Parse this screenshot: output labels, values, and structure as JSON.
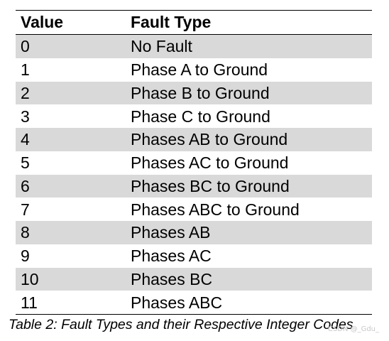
{
  "table": {
    "headers": {
      "value": "Value",
      "fault_type": "Fault Type"
    },
    "rows": [
      {
        "value": "0",
        "fault_type": "No Fault"
      },
      {
        "value": "1",
        "fault_type": "Phase A to Ground"
      },
      {
        "value": "2",
        "fault_type": "Phase B to Ground"
      },
      {
        "value": "3",
        "fault_type": "Phase C to Ground"
      },
      {
        "value": "4",
        "fault_type": "Phases AB to Ground"
      },
      {
        "value": "5",
        "fault_type": "Phases AC to Ground"
      },
      {
        "value": "6",
        "fault_type": "Phases BC to Ground"
      },
      {
        "value": "7",
        "fault_type": "Phases ABC to Ground"
      },
      {
        "value": "8",
        "fault_type": "Phases AB"
      },
      {
        "value": "9",
        "fault_type": "Phases AC"
      },
      {
        "value": "10",
        "fault_type": "Phases BC"
      },
      {
        "value": "11",
        "fault_type": "Phases ABC"
      }
    ]
  },
  "caption": "Table 2: Fault Types and their Respective Integer Codes",
  "watermark": "CSDN @_Gdu_",
  "colors": {
    "shaded_row": "#d9d9d9",
    "text": "#000000"
  }
}
